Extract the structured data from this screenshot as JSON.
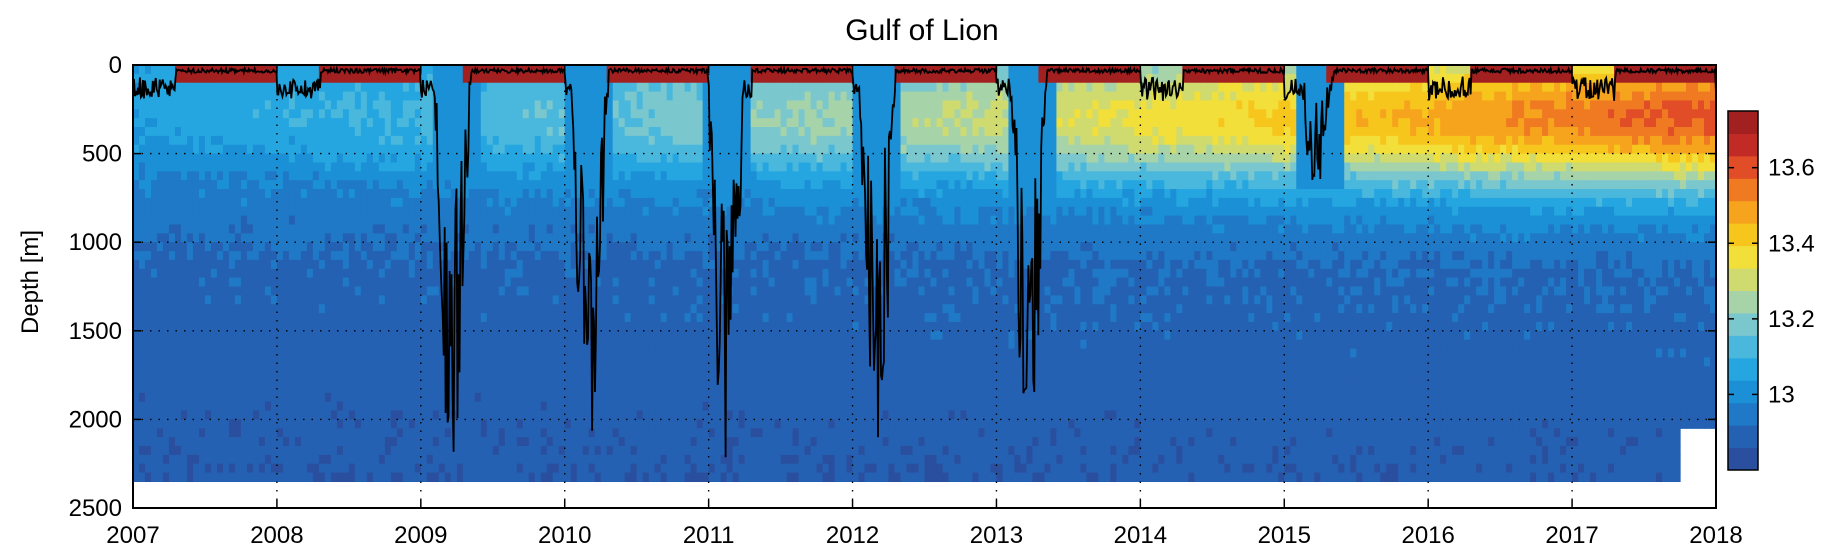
{
  "chart_data": {
    "type": "heatmap",
    "title": "Gulf of Lion",
    "ylabel": "Depth [m]",
    "xlabel": "",
    "xlim": [
      2007,
      2018
    ],
    "ylim": [
      2500,
      0
    ],
    "x_ticks": [
      "2007",
      "2008",
      "2009",
      "2010",
      "2011",
      "2012",
      "2013",
      "2014",
      "2015",
      "2016",
      "2017",
      "2018"
    ],
    "y_ticks": [
      "0",
      "500",
      "1000",
      "1500",
      "2000",
      "2500"
    ],
    "grid": true,
    "colorbar": {
      "range": [
        12.8,
        13.75
      ],
      "ticks": [
        "13",
        "13.2",
        "13.4",
        "13.6"
      ],
      "tick_values": [
        13.0,
        13.2,
        13.4,
        13.6
      ],
      "colors": [
        "#2a4f9e",
        "#2561b3",
        "#1f79c6",
        "#1b90d6",
        "#25a6e0",
        "#4ab8dc",
        "#7ac7ce",
        "#a7d3a9",
        "#cfdb6f",
        "#f2df3a",
        "#f7c61d",
        "#f6a41d",
        "#f07a22",
        "#e14d26",
        "#c22a25",
        "#a32020"
      ]
    },
    "data_extent_max_depth_m": 2350,
    "surface_warm_layer_depth_m": 100,
    "convection_events": [
      {
        "year": 2009.15,
        "max_depth_m": 2340
      },
      {
        "year": 2010.1,
        "max_depth_m": 2340
      },
      {
        "year": 2011.05,
        "max_depth_m": 2340
      },
      {
        "year": 2012.1,
        "max_depth_m": 2340
      },
      {
        "year": 2013.15,
        "max_depth_m": 2340
      },
      {
        "year": 2015.15,
        "max_depth_m": 700
      }
    ]
  }
}
